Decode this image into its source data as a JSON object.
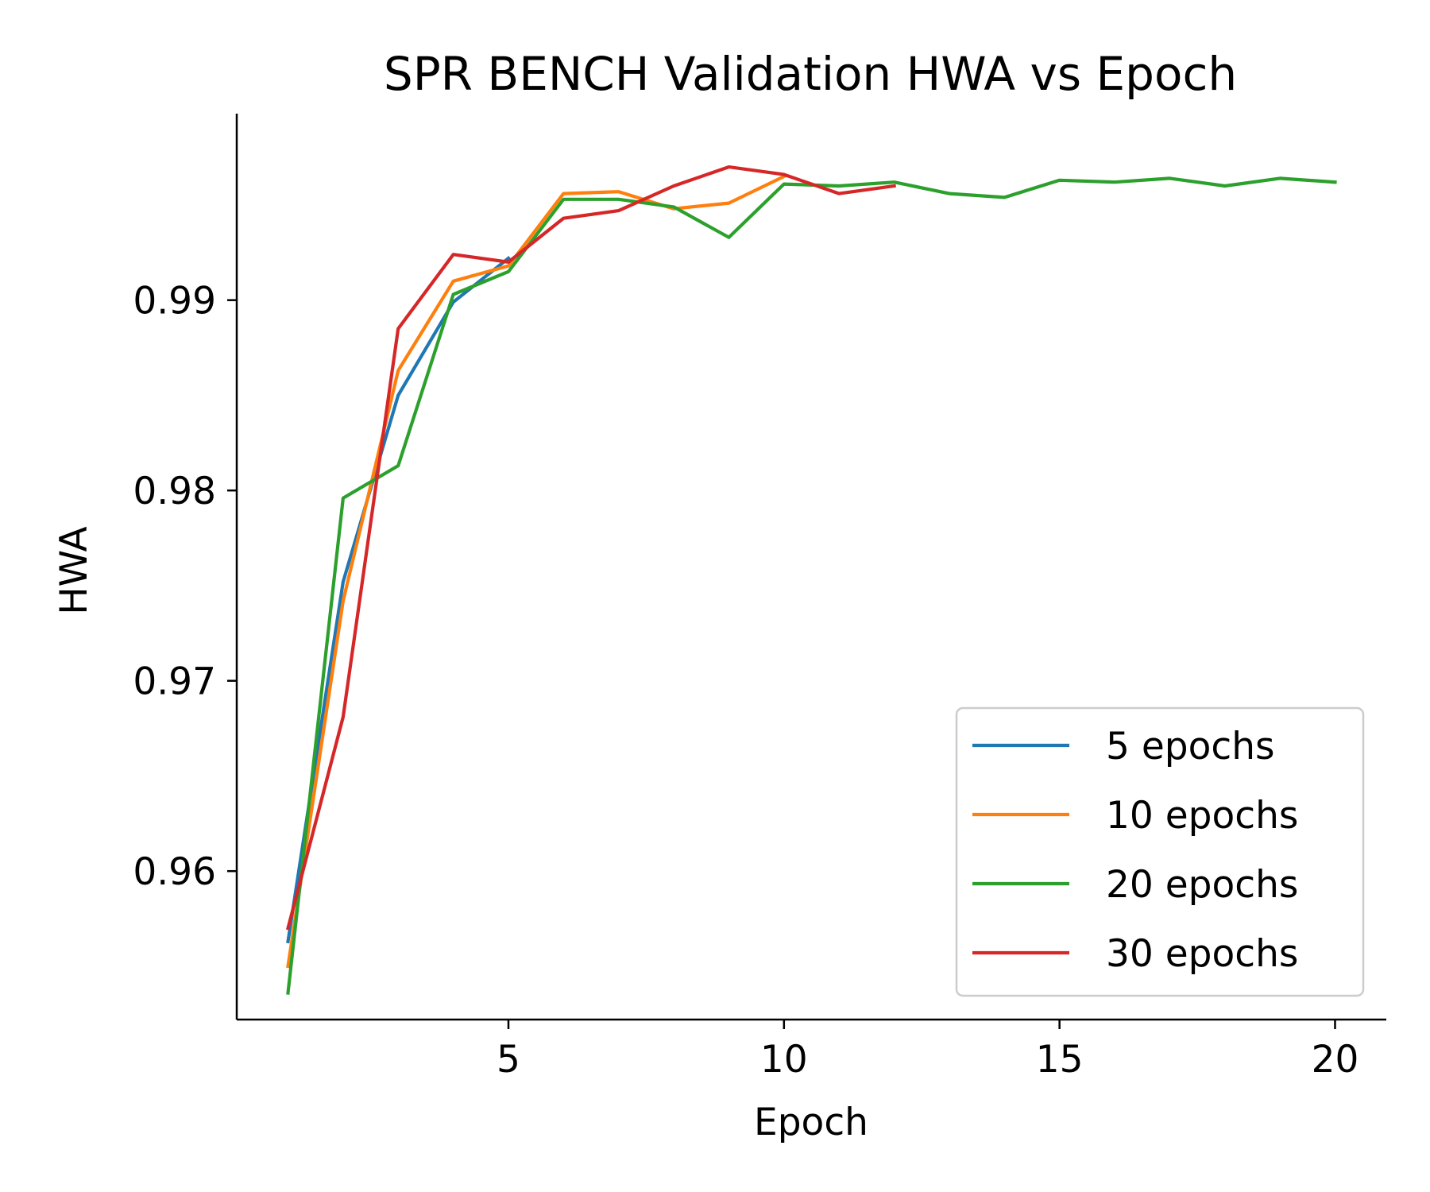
{
  "chart_data": {
    "type": "line",
    "title": "SPR BENCH Validation HWA vs Epoch",
    "xlabel": "Epoch",
    "ylabel": "HWA",
    "xlim": [
      0.07,
      20.93
    ],
    "ylim": [
      0.9522,
      0.9998
    ],
    "xticks": [
      5,
      10,
      15,
      20
    ],
    "yticks": [
      0.96,
      0.97,
      0.98,
      0.99
    ],
    "ytick_labels": [
      "0.96",
      "0.97",
      "0.98",
      "0.99"
    ],
    "grid": false,
    "legend_position": "lower right",
    "series": [
      {
        "name": "5 epochs",
        "color": "#1f77b4",
        "x": [
          1,
          2,
          3,
          4,
          5
        ],
        "y": [
          0.9563,
          0.9752,
          0.985,
          0.9899,
          0.9922
        ]
      },
      {
        "name": "10 epochs",
        "color": "#ff7f0e",
        "x": [
          1,
          2,
          3,
          4,
          5,
          6,
          7,
          8,
          9,
          10
        ],
        "y": [
          0.955,
          0.9742,
          0.9863,
          0.991,
          0.9918,
          0.9956,
          0.9957,
          0.9948,
          0.9951,
          0.9965
        ]
      },
      {
        "name": "20 epochs",
        "color": "#2ca02c",
        "x": [
          1,
          2,
          3,
          4,
          5,
          6,
          7,
          8,
          9,
          10,
          11,
          12,
          13,
          14,
          15,
          16,
          17,
          18,
          19,
          20
        ],
        "y": [
          0.9536,
          0.9796,
          0.9813,
          0.9903,
          0.9915,
          0.9953,
          0.9953,
          0.9949,
          0.9933,
          0.9961,
          0.996,
          0.9962,
          0.9956,
          0.9954,
          0.9963,
          0.9962,
          0.9964,
          0.996,
          0.9964,
          0.9962
        ]
      },
      {
        "name": "30 epochs",
        "color": "#d62728",
        "x": [
          1,
          2,
          3,
          4,
          5,
          6,
          7,
          8,
          9,
          10,
          11,
          12
        ],
        "y": [
          0.957,
          0.9681,
          0.9885,
          0.9924,
          0.992,
          0.9943,
          0.9947,
          0.996,
          0.997,
          0.9966,
          0.9956,
          0.996
        ]
      }
    ]
  }
}
